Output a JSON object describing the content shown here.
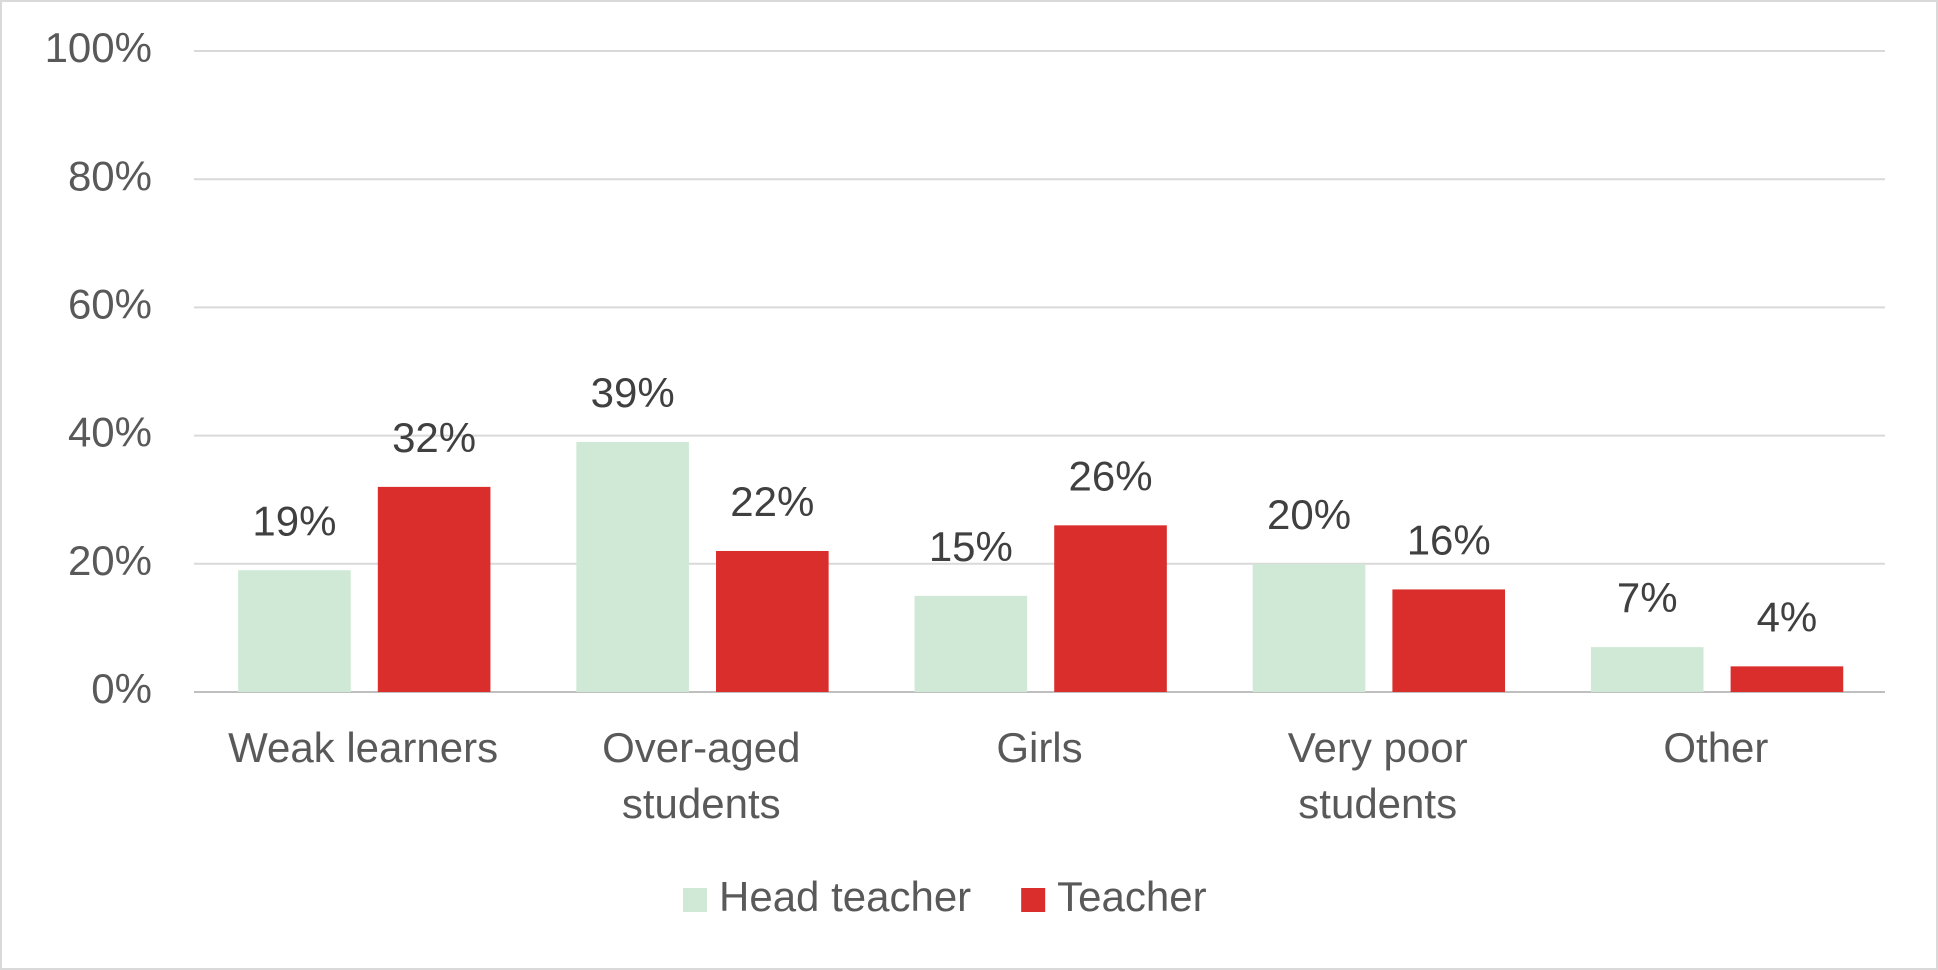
{
  "chart_data": {
    "type": "bar",
    "categories": [
      "Weak learners",
      "Over-aged students",
      "Girls",
      "Very poor students",
      "Other"
    ],
    "series": [
      {
        "name": "Head teacher",
        "color": "#d0e9d6",
        "values": [
          19,
          39,
          15,
          20,
          7
        ],
        "value_labels": [
          "19%",
          "39%",
          "15%",
          "20%",
          "7%"
        ]
      },
      {
        "name": "Teacher",
        "color": "#da2e2c",
        "values": [
          32,
          22,
          26,
          16,
          4
        ],
        "value_labels": [
          "32%",
          "22%",
          "26%",
          "16%",
          "4%"
        ]
      }
    ],
    "ylim": [
      0,
      100
    ],
    "yticks": [
      {
        "value": 0,
        "label": "0%"
      },
      {
        "value": 20,
        "label": "20%"
      },
      {
        "value": 40,
        "label": "40%"
      },
      {
        "value": 60,
        "label": "60%"
      },
      {
        "value": 80,
        "label": "80%"
      },
      {
        "value": 100,
        "label": "100%"
      }
    ],
    "grid": true,
    "legend": "bottom"
  }
}
